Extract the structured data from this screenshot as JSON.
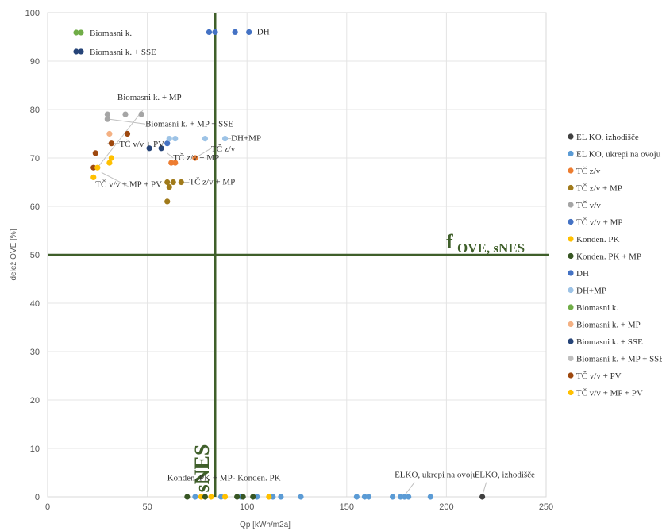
{
  "chart_data": {
    "type": "scatter",
    "xlabel": "Qp [kWh/m2a]",
    "ylabel": "delež OVE [%]",
    "xlim": [
      0,
      250
    ],
    "ylim": [
      0,
      100
    ],
    "x_ticks": [
      "0",
      "50",
      "100",
      "150",
      "200",
      "250"
    ],
    "y_ticks": [
      "0",
      "10",
      "20",
      "30",
      "40",
      "50",
      "60",
      "70",
      "80",
      "90",
      "100"
    ],
    "grid": "vertical and horizontal",
    "colors": {
      "threshold_line": "#3f5f2a",
      "grid": "#e4e4e4",
      "annotation_line": "#bfbfbf"
    },
    "thresholds": {
      "vertical": {
        "x": 84,
        "label": "sNES"
      },
      "horizontal": {
        "y": 50,
        "label_main": "f",
        "label_sub": "OVE, sNES"
      }
    },
    "series": [
      {
        "name": "EL KO, izhodišče",
        "color": "#404040",
        "points": [
          [
            218,
            0
          ]
        ]
      },
      {
        "name": "EL KO, ukrepi na ovoju",
        "color": "#5b9bd5",
        "points": [
          [
            74,
            0
          ],
          [
            87,
            0
          ],
          [
            97,
            0
          ],
          [
            105,
            0
          ],
          [
            113,
            0
          ],
          [
            117,
            0
          ],
          [
            127,
            0
          ],
          [
            155,
            0
          ],
          [
            159,
            0
          ],
          [
            161,
            0
          ],
          [
            173,
            0
          ],
          [
            177,
            0
          ],
          [
            179,
            0
          ],
          [
            181,
            0
          ],
          [
            192,
            0
          ]
        ]
      },
      {
        "name": "TČ z/v",
        "color": "#ed7d31",
        "points": [
          [
            62,
            69
          ],
          [
            64,
            69
          ],
          [
            74,
            70
          ]
        ]
      },
      {
        "name": "TČ z/v + MP",
        "color": "#a07a1a",
        "points": [
          [
            60,
            61
          ],
          [
            60,
            65
          ],
          [
            61,
            64
          ],
          [
            63,
            65
          ],
          [
            67,
            65
          ]
        ]
      },
      {
        "name": "TČ v/v",
        "color": "#a5a5a5",
        "points": [
          [
            30,
            78
          ],
          [
            30,
            79
          ],
          [
            39,
            79
          ],
          [
            47,
            79
          ]
        ]
      },
      {
        "name": "TČ v/v + MP",
        "color": "#4472c4",
        "points": [
          [
            60,
            73
          ]
        ]
      },
      {
        "name": "Konden. PK",
        "color": "#ffc000",
        "points": [
          [
            77,
            0
          ],
          [
            82,
            0
          ],
          [
            89,
            0
          ],
          [
            111,
            0
          ]
        ]
      },
      {
        "name": "Konden. PK + MP",
        "color": "#375623",
        "points": [
          [
            70,
            0
          ],
          [
            79,
            0
          ],
          [
            95,
            0
          ],
          [
            98,
            0
          ],
          [
            103,
            0
          ]
        ]
      },
      {
        "name": "DH",
        "color": "#4472c4",
        "points": [
          [
            81,
            96
          ],
          [
            84,
            96
          ],
          [
            94,
            96
          ],
          [
            101,
            96
          ]
        ]
      },
      {
        "name": "DH+MP",
        "color": "#9dc3e6",
        "points": [
          [
            61,
            74
          ],
          [
            64,
            74
          ],
          [
            79,
            74
          ],
          [
            89,
            74
          ]
        ]
      },
      {
        "name": "Biomasni k.",
        "color": "#70ad47",
        "points": []
      },
      {
        "name": "Biomasni k. + MP",
        "color": "#f4b183",
        "points": [
          [
            31,
            75
          ]
        ]
      },
      {
        "name": "Biomasni k. + SSE",
        "color": "#264478",
        "points": [
          [
            51,
            72
          ],
          [
            57,
            72
          ]
        ]
      },
      {
        "name": "Biomasni k. + MP + SSE",
        "color": "#bfbfbf",
        "points": []
      },
      {
        "name": "TČ v/v + PV",
        "color": "#9e480e",
        "points": [
          [
            23,
            68
          ],
          [
            24,
            71
          ],
          [
            32,
            73
          ],
          [
            40,
            75
          ]
        ]
      },
      {
        "name": "TČ v/v + MP + PV",
        "color": "#ffc000",
        "points": [
          [
            23,
            66
          ],
          [
            25,
            68
          ],
          [
            31,
            69
          ],
          [
            32,
            70
          ]
        ]
      }
    ],
    "inner_legend": [
      {
        "label": "Biomasni k.",
        "color": "#70ad47"
      },
      {
        "label": "Biomasni k. + SSE",
        "color": "#264478"
      }
    ],
    "annotations": [
      {
        "text": "Biomasni k. + MP",
        "x": 35,
        "y": 82,
        "line": [
          [
            25,
            68
          ],
          [
            48,
            80
          ]
        ]
      },
      {
        "text": "Biomasni k. + MP + SSE",
        "x": 49,
        "y": 76.5,
        "line": [
          [
            31,
            78
          ],
          [
            49,
            77
          ]
        ]
      },
      {
        "text": "TČ v/v + PV",
        "x": 36,
        "y": 72.3,
        "line": [
          [
            30,
            73
          ],
          [
            36,
            73
          ]
        ]
      },
      {
        "text": "TČ v/v + MP + PV",
        "x": 24,
        "y": 64,
        "line": [
          [
            27,
            67
          ],
          [
            41,
            64
          ]
        ]
      },
      {
        "text": "TČ z/v + MP",
        "x": 71,
        "y": 64.5,
        "line": [
          [
            67,
            65
          ],
          [
            71,
            65
          ]
        ]
      },
      {
        "text": "TČ z/v + MP",
        "x": 63,
        "y": 69.5,
        "line": [
          [
            60,
            71
          ],
          [
            63,
            70
          ]
        ]
      },
      {
        "text": "TČ z/v",
        "x": 82,
        "y": 71.3,
        "line": [
          [
            74,
            70
          ],
          [
            82,
            72
          ]
        ]
      },
      {
        "text": "DH+MP",
        "x": 92,
        "y": 73.5,
        "line": [
          [
            89,
            74
          ],
          [
            92,
            74
          ]
        ]
      },
      {
        "text": "DH",
        "x": 105,
        "y": 95.5,
        "line": null
      },
      {
        "text": "Konden. PK + MP- Konden. PK",
        "x": 60,
        "y": 3.4,
        "line": null
      },
      {
        "text": "ELKO, ukrepi na ovoju",
        "x": 174,
        "y": 4,
        "line": [
          [
            184,
            3
          ],
          [
            179,
            0.3
          ]
        ]
      },
      {
        "text": "ELKO, izhodišče",
        "x": 214,
        "y": 4,
        "line": [
          [
            220,
            3
          ],
          [
            218,
            0.3
          ]
        ]
      }
    ]
  }
}
